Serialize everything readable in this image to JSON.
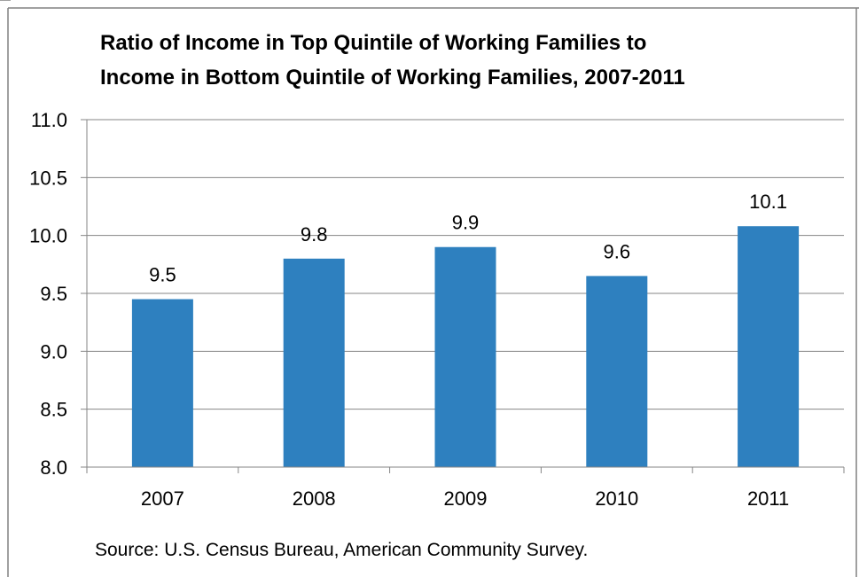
{
  "chart_data": {
    "type": "bar",
    "title": "Ratio of Income in Top Quintile of Working Families to Income in Bottom Quintile of Working Families, 2007-2011",
    "title_lines": [
      "Ratio of Income in Top Quintile of Working Families to",
      "Income in Bottom Quintile of Working Families, 2007-2011"
    ],
    "categories": [
      "2007",
      "2008",
      "2009",
      "2010",
      "2011"
    ],
    "values": [
      9.45,
      9.8,
      9.9,
      9.65,
      10.08
    ],
    "data_labels": [
      "9.5",
      "9.8",
      "9.9",
      "9.6",
      "10.1"
    ],
    "ylim": [
      8.0,
      11.0
    ],
    "yticks": [
      "8.0",
      "8.5",
      "9.0",
      "9.5",
      "10.0",
      "10.5",
      "11.0"
    ],
    "xlabel": "",
    "ylabel": "",
    "grid": true,
    "legend": "none",
    "bar_color": "#2E80BF",
    "source": "Source: U.S. Census Bureau, American Community Survey."
  }
}
